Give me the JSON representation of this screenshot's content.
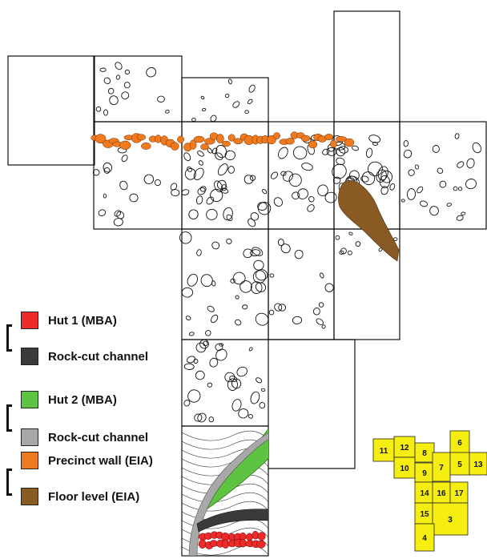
{
  "legend": [
    {
      "label": "Hut 1 (MBA)",
      "color": "#ee2b2b"
    },
    {
      "label": "Rock-cut channel",
      "color": "#3a3a3a"
    },
    {
      "label": "Hut 2 (MBA)",
      "color": "#5cc440"
    },
    {
      "label": "Rock-cut channel",
      "color": "#a8a8a8"
    },
    {
      "label": "Precinct wall (EIA)",
      "color": "#f07a1e"
    },
    {
      "label": "Floor level (EIA)",
      "color": "#8a5a24"
    }
  ],
  "key_grid": {
    "fill": "#f6ee10",
    "cells": [
      "11",
      "12",
      "8",
      "6",
      "10",
      "9",
      "7",
      "5",
      "13",
      "14",
      "16",
      "17",
      "15",
      "3",
      "4"
    ]
  },
  "colors": {
    "outline": "#111111",
    "wall": "#f07a1e",
    "floor": "#8a5a24",
    "hut1": "#ee2b2b",
    "hut2": "#5cc440",
    "channel_dark": "#3a3a3a",
    "channel_light": "#a8a8a8"
  }
}
